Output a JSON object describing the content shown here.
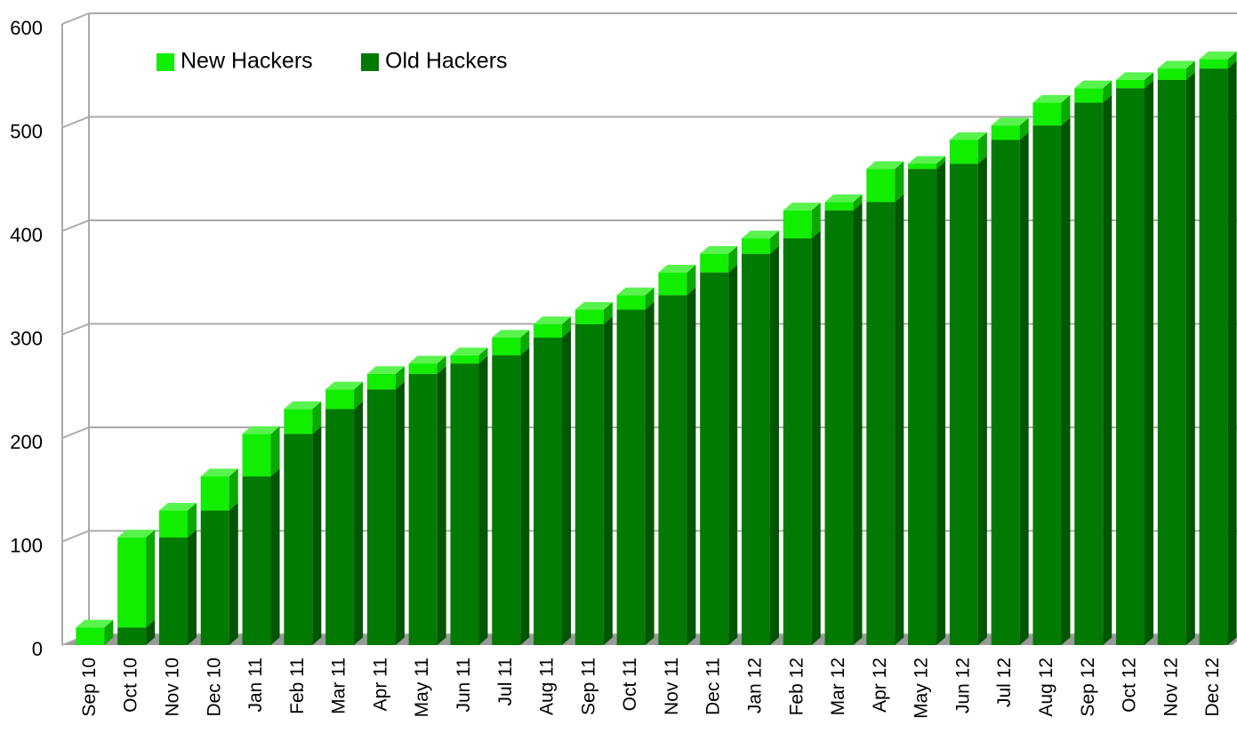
{
  "chart_data": {
    "type": "bar3d_stacked",
    "categories": [
      "Sep 10",
      "Oct 10",
      "Nov 10",
      "Dec 10",
      "Jan 11",
      "Feb 11",
      "Mar 11",
      "Apr 11",
      "May 11",
      "Jun 11",
      "Jul 11",
      "Aug 11",
      "Sep 11",
      "Oct 11",
      "Nov 11",
      "Dec 11",
      "Jan 12",
      "Feb 12",
      "Mar 12",
      "Apr 12",
      "May 12",
      "Jun 12",
      "Jul 12",
      "Aug 12",
      "Sep 12",
      "Oct 12",
      "Nov 12",
      "Dec 12"
    ],
    "series": [
      {
        "name": "Old Hackers",
        "color": "#007a00",
        "values": [
          0,
          17,
          104,
          130,
          163,
          204,
          228,
          247,
          262,
          272,
          280,
          297,
          310,
          324,
          338,
          360,
          378,
          393,
          420,
          428,
          460,
          465,
          488,
          502,
          524,
          538,
          546,
          557
        ]
      },
      {
        "name": "New Hackers",
        "color": "#11ee00",
        "values": [
          17,
          87,
          26,
          33,
          41,
          24,
          19,
          15,
          10,
          8,
          17,
          13,
          14,
          14,
          22,
          18,
          15,
          27,
          8,
          32,
          5,
          23,
          14,
          22,
          14,
          8,
          11,
          9
        ]
      }
    ],
    "legend_order": [
      1,
      0
    ],
    "ylim": [
      0,
      600
    ],
    "yticks": [
      0,
      100,
      200,
      300,
      400,
      500,
      600
    ],
    "grid": true
  }
}
